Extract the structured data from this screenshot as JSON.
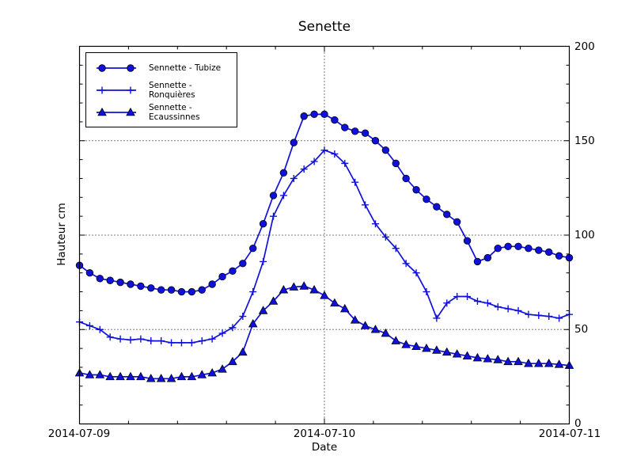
{
  "title": "Senette",
  "chart_data": {
    "type": "line",
    "title": "Senette",
    "xlabel": "Date",
    "ylabel": "Hauteur cm",
    "x_start": "2014-07-09 00:00",
    "x_step_hours": 1,
    "xlim_hours": [
      0,
      48
    ],
    "ylim": [
      0,
      200
    ],
    "x_major_tick_hours": [
      0,
      24,
      48
    ],
    "x_tick_labels": [
      "2014-07-09",
      "2014-07-10",
      "2014-07-11"
    ],
    "y_major_ticks": [
      0,
      50,
      100,
      150,
      200
    ],
    "y_tick_labels": [
      "0",
      "50",
      "100",
      "150",
      "200"
    ],
    "y_tick_side": "right",
    "grid": {
      "h_lines": [
        50,
        100,
        150
      ],
      "v_line_hours": [
        24
      ],
      "style": "dotted",
      "color": "#000000"
    },
    "legend_position": "upper-left",
    "line_color": "#1010dd",
    "marker_edge_color": "#000010",
    "series": [
      {
        "name": "Sennette - Tubize",
        "marker": "circle",
        "color": "#1010dd",
        "values": [
          84,
          80,
          77,
          76,
          75,
          74,
          73,
          72,
          71,
          71,
          70,
          70,
          71,
          74,
          78,
          81,
          85,
          93,
          106,
          121,
          133,
          149,
          163,
          164,
          164,
          161,
          157,
          155,
          154,
          150,
          145,
          138,
          130,
          124,
          119,
          115,
          111,
          107,
          97,
          86,
          88,
          93,
          94,
          94,
          93,
          92,
          91,
          89,
          88
        ]
      },
      {
        "name": "Sennette - Ronquières",
        "marker": "plus",
        "color": "#1010dd",
        "values": [
          54,
          52,
          50,
          46,
          45,
          44.5,
          45,
          44,
          44,
          43,
          43,
          43,
          44,
          45,
          48,
          51,
          57,
          70,
          86,
          110,
          121,
          130,
          135,
          139,
          145,
          143,
          138,
          128,
          116,
          106,
          99,
          93,
          85,
          80,
          70,
          56,
          64,
          67.5,
          67.5,
          65,
          64,
          62,
          61,
          60,
          58,
          57.5,
          57,
          56,
          58
        ]
      },
      {
        "name": "Sennette - Ecaussinnes",
        "marker": "triangle",
        "color": "#1010dd",
        "values": [
          27,
          26,
          26,
          25,
          25,
          25,
          25,
          24,
          24,
          24,
          25,
          25,
          26,
          27,
          29,
          33,
          38,
          53,
          60,
          65,
          71,
          72.5,
          73,
          71,
          68,
          64,
          61,
          55,
          52,
          50,
          48,
          44,
          42,
          41,
          40,
          39,
          38,
          37,
          36,
          35,
          34.5,
          34,
          33,
          33,
          32,
          32,
          32,
          31.5,
          31
        ]
      }
    ]
  }
}
